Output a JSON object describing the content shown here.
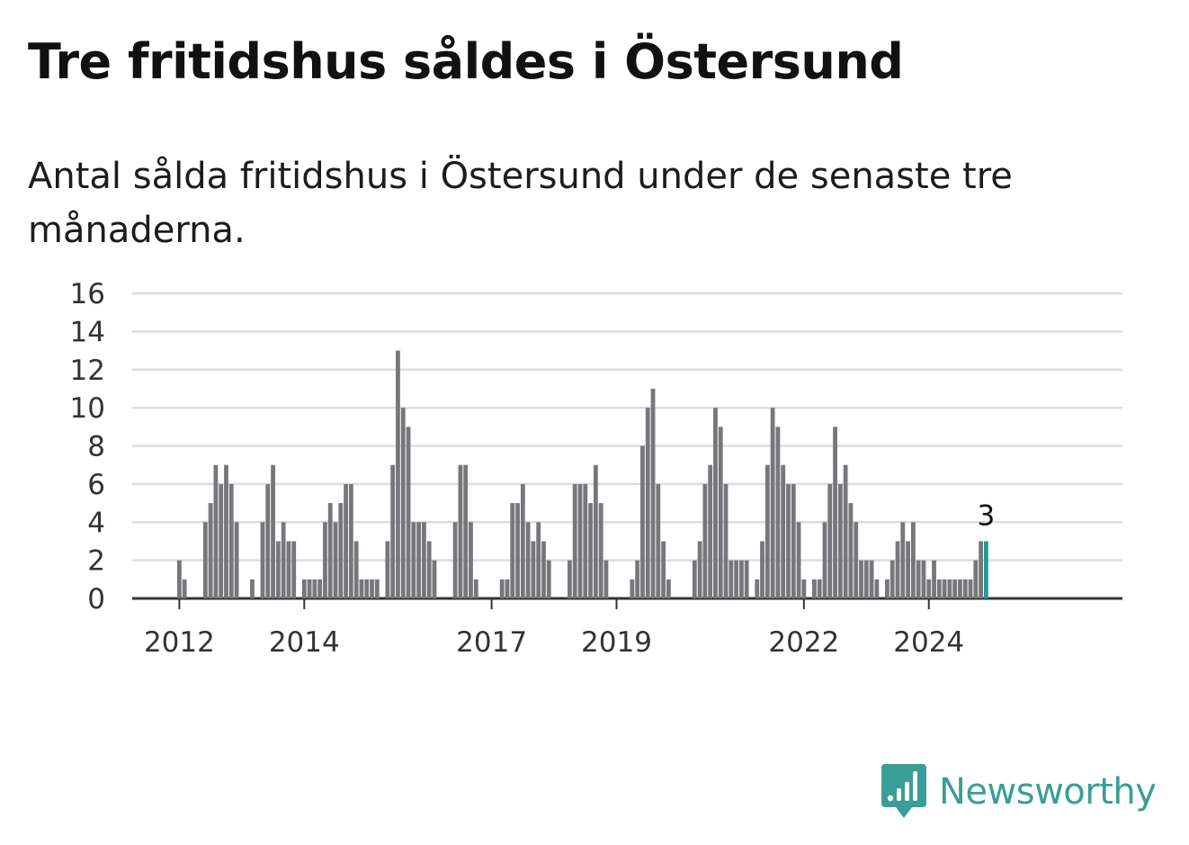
{
  "title": "Tre fritidshus såldes i Östersund",
  "subtitle": "Antal sålda fritidshus i Östersund under de senaste tre månaderna.",
  "brand": {
    "name": "Newsworthy",
    "icon": "newsworthy-logo-icon",
    "color": "#3a9e96"
  },
  "colors": {
    "bar": "#77767b",
    "highlight": "#1f9c92",
    "grid": "#dddddd",
    "axis": "#333333"
  },
  "chart_data": {
    "type": "bar",
    "x_start": "2012-01",
    "x_end": "2025-01",
    "x_ticks": [
      "2012",
      "2014",
      "2017",
      "2019",
      "2022",
      "2024"
    ],
    "y_ticks": [
      "0",
      "2",
      "4",
      "6",
      "8",
      "10",
      "12",
      "14",
      "16"
    ],
    "ylim": [
      0,
      16
    ],
    "grid": true,
    "highlight_last": true,
    "last_value_label": "3",
    "values": [
      2,
      1,
      0,
      0,
      0,
      4,
      5,
      7,
      6,
      7,
      6,
      4,
      0,
      0,
      1,
      0,
      4,
      6,
      7,
      3,
      4,
      3,
      3,
      0,
      1,
      1,
      1,
      1,
      4,
      5,
      4,
      5,
      6,
      6,
      3,
      1,
      1,
      1,
      1,
      0,
      3,
      7,
      13,
      10,
      9,
      4,
      4,
      4,
      3,
      2,
      0,
      0,
      0,
      4,
      7,
      7,
      4,
      1,
      0,
      0,
      0,
      0,
      1,
      1,
      5,
      5,
      6,
      4,
      3,
      4,
      3,
      2,
      0,
      0,
      0,
      2,
      6,
      6,
      6,
      5,
      7,
      5,
      2,
      0,
      0,
      0,
      0,
      1,
      2,
      8,
      10,
      11,
      6,
      3,
      1,
      0,
      0,
      0,
      0,
      2,
      3,
      6,
      7,
      10,
      9,
      6,
      2,
      2,
      2,
      2,
      0,
      1,
      3,
      7,
      10,
      9,
      7,
      6,
      6,
      4,
      1,
      0,
      1,
      1,
      4,
      6,
      9,
      6,
      7,
      5,
      4,
      2,
      2,
      2,
      1,
      0,
      1,
      2,
      3,
      4,
      3,
      4,
      2,
      2,
      1,
      2,
      1,
      1,
      1,
      1,
      1,
      1,
      1,
      2,
      3,
      3
    ]
  }
}
